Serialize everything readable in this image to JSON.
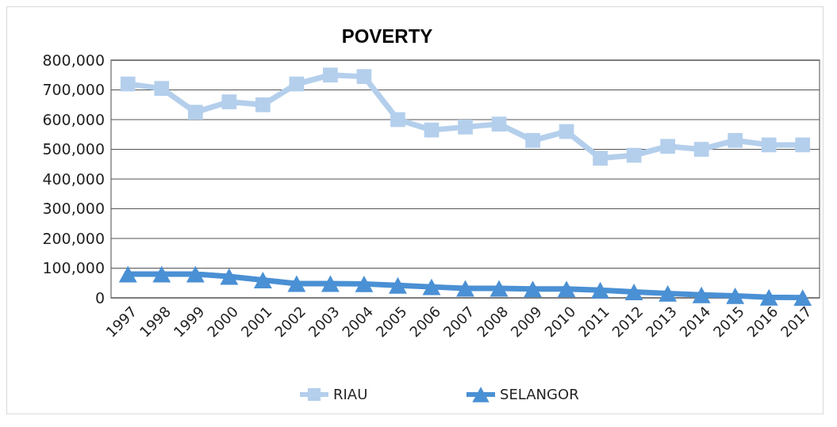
{
  "chart_data": {
    "type": "line",
    "title": "POVERTY",
    "categories": [
      "1997",
      "1998",
      "1999",
      "2000",
      "2001",
      "2002",
      "2003",
      "2004",
      "2005",
      "2006",
      "2007",
      "2008",
      "2009",
      "2010",
      "2011",
      "2012",
      "2013",
      "2014",
      "2015",
      "2016",
      "2017"
    ],
    "series": [
      {
        "name": "RIAU",
        "color": "#b4cfec",
        "marker": "square",
        "values": [
          720000,
          705000,
          625000,
          660000,
          650000,
          720000,
          750000,
          745000,
          600000,
          565000,
          575000,
          585000,
          530000,
          560000,
          470000,
          480000,
          510000,
          500000,
          530000,
          515000,
          515000
        ]
      },
      {
        "name": "SELANGOR",
        "color": "#4a90d4",
        "marker": "triangle",
        "values": [
          80000,
          80000,
          80000,
          72000,
          60000,
          48000,
          48000,
          47000,
          42000,
          37000,
          32000,
          32000,
          30000,
          30000,
          26000,
          20000,
          15000,
          10000,
          7000,
          2000,
          1000
        ]
      }
    ],
    "ylim": [
      0,
      800000
    ],
    "yticks": [
      {
        "value": 0,
        "label": "0"
      },
      {
        "value": 100000,
        "label": "100,000"
      },
      {
        "value": 200000,
        "label": "200,000"
      },
      {
        "value": 300000,
        "label": "300,000"
      },
      {
        "value": 400000,
        "label": "400,000"
      },
      {
        "value": 500000,
        "label": "500,000"
      },
      {
        "value": 600000,
        "label": "600,000"
      },
      {
        "value": 700000,
        "label": "700,000"
      },
      {
        "value": 800000,
        "label": "800,000"
      }
    ],
    "grid": "y",
    "legend": "bottom",
    "line_style": "solid"
  }
}
